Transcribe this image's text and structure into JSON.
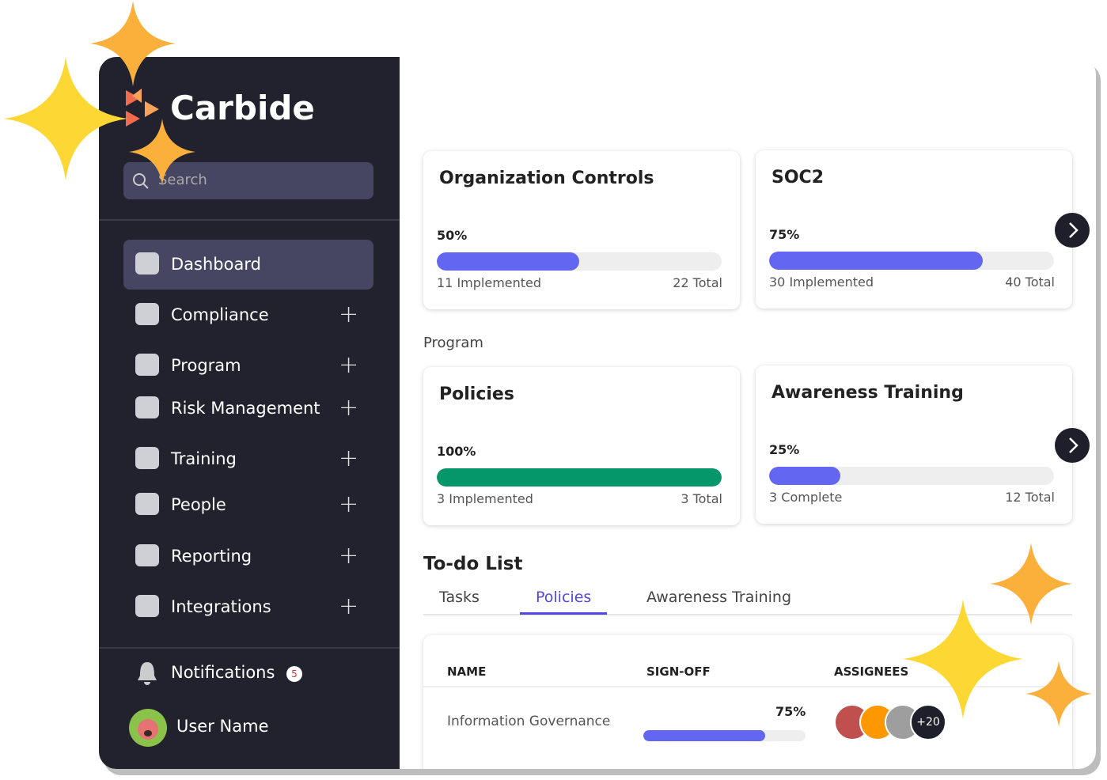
{
  "sidebar": {
    "brand": "Carbide",
    "search_placeholder": "Search",
    "nav": [
      "Dashboard",
      "Compliance",
      "Program",
      "Risk Management",
      "Training",
      "People",
      "Reporting",
      "Integrations"
    ],
    "active_nav": 0,
    "notifications": {
      "label": "Notifications",
      "count": 5
    },
    "user": "User Name"
  },
  "cards": [
    {
      "title": "Organization Controls",
      "progress": {
        "value": 50,
        "label": "50%"
      },
      "done": "11 Implemented",
      "total": "22 Total",
      "color": "#6366f1"
    },
    {
      "title": "SOC2",
      "progress": {
        "value": 75,
        "label": "75%"
      },
      "done": "30 Implemented",
      "total": "40 Total",
      "color": "#6366f1"
    },
    {
      "title": "Policies",
      "progress": {
        "value": 100,
        "label": "100%"
      },
      "done": "3 Implemented",
      "total": "3 Total",
      "color": "#059669"
    },
    {
      "title": "Awareness Training",
      "progress": {
        "value": 25,
        "label": "25%"
      },
      "done": "3 Complete",
      "total": "12 Total",
      "color": "#6366f1"
    }
  ],
  "section_label": "Program",
  "todo": {
    "title": "To-do List",
    "tabs": [
      "Tasks",
      "Policies",
      "Awareness Training"
    ],
    "active_tab": 1,
    "columns": [
      "NAME",
      "SIGN-OFF",
      "ASSIGNEES"
    ],
    "rows": [
      {
        "name": "Information Governance",
        "signoff": {
          "value": 75,
          "label": "75%"
        },
        "extra_assignees": "+20"
      }
    ]
  }
}
